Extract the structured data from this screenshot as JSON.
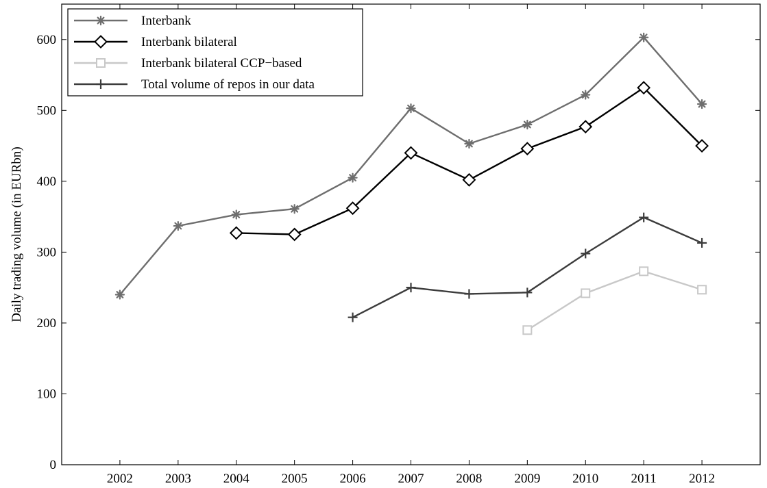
{
  "chart_data": {
    "type": "line",
    "title": "",
    "xlabel": "",
    "ylabel": "Daily trading volume (in EURbn)",
    "categories": [
      "2002",
      "2003",
      "2004",
      "2005",
      "2006",
      "2007",
      "2008",
      "2009",
      "2010",
      "2011",
      "2012"
    ],
    "xlim": [
      2001,
      2013
    ],
    "ylim": [
      0,
      650
    ],
    "yticks": [
      0,
      100,
      200,
      300,
      400,
      500,
      600
    ],
    "grid": false,
    "legend_position": "top-left",
    "series": [
      {
        "name": "Interbank",
        "color": "#6e6e6e",
        "marker": "asterisk",
        "x": [
          2002,
          2003,
          2004,
          2005,
          2006,
          2007,
          2008,
          2009,
          2010,
          2011,
          2012
        ],
        "values": [
          240,
          337,
          353,
          361,
          405,
          503,
          453,
          480,
          522,
          603,
          509
        ]
      },
      {
        "name": "Interbank bilateral",
        "color": "#000000",
        "marker": "diamond",
        "x": [
          2004,
          2005,
          2006,
          2007,
          2008,
          2009,
          2010,
          2011,
          2012
        ],
        "values": [
          327,
          325,
          362,
          440,
          402,
          446,
          477,
          532,
          450
        ]
      },
      {
        "name": "Interbank bilateral CCP−based",
        "color": "#c8c8c8",
        "marker": "square",
        "x": [
          2009,
          2010,
          2011,
          2012
        ],
        "values": [
          190,
          242,
          273,
          247
        ]
      },
      {
        "name": "Total volume of repos in our data",
        "color": "#3c3c3c",
        "marker": "plus",
        "x": [
          2006,
          2007,
          2008,
          2009,
          2010,
          2011,
          2012
        ],
        "values": [
          208,
          250,
          241,
          243,
          298,
          349,
          313
        ]
      }
    ]
  }
}
